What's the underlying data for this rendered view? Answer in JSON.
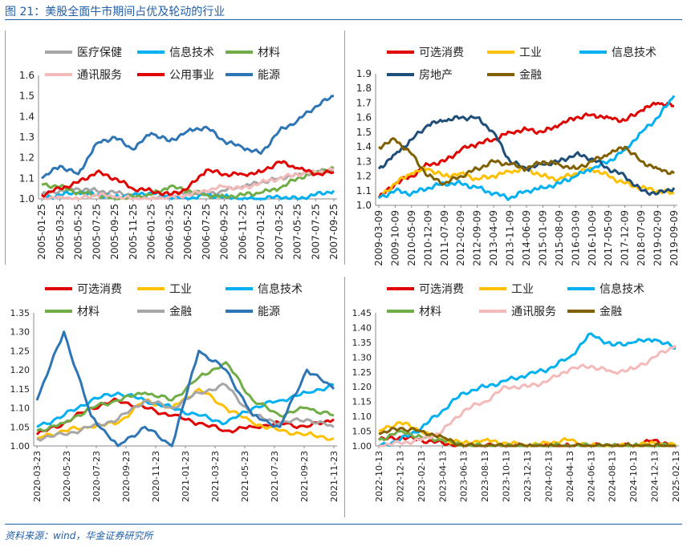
{
  "figure": {
    "title": "图 21：美股全面牛市期间占优及轮动的行业",
    "source": "资料来源：wind，华金证券研究所"
  },
  "chart_data": [
    {
      "type": "line",
      "grid": false,
      "legend_position": "top",
      "ylim": [
        1.0,
        1.6
      ],
      "yticks": [
        "1.0",
        "1.1",
        "1.2",
        "1.3",
        "1.4",
        "1.5",
        "1.6"
      ],
      "xticks": [
        "2005-01-25",
        "2005-03-25",
        "2005-05-25",
        "2005-07-25",
        "2005-09-25",
        "2005-11-25",
        "2006-01-25",
        "2006-03-25",
        "2006-05-25",
        "2006-07-25",
        "2006-09-25",
        "2006-11-25",
        "2007-01-25",
        "2007-03-25",
        "2007-05-25",
        "2007-07-25",
        "2007-09-25"
      ],
      "series": [
        {
          "name": "医疗保健",
          "color": "#a6a6a6",
          "values": [
            1.02,
            1.04,
            1.05,
            1.04,
            1.03,
            1.02,
            1.0,
            1.02,
            1.03,
            1.02,
            1.04,
            1.06,
            1.08,
            1.1,
            1.12,
            1.13,
            1.14
          ]
        },
        {
          "name": "信息技术",
          "color": "#00b0f0",
          "values": [
            1.0,
            1.02,
            1.03,
            1.02,
            1.01,
            1.02,
            1.03,
            1.01,
            1.0,
            1.02,
            1.01,
            1.0,
            1.0,
            1.01,
            1.0,
            1.02,
            1.04
          ]
        },
        {
          "name": "材料",
          "color": "#70ad47",
          "values": [
            1.07,
            1.06,
            1.03,
            1.02,
            1.0,
            1.01,
            1.02,
            1.06,
            1.04,
            1.02,
            1.01,
            1.02,
            1.03,
            1.05,
            1.1,
            1.13,
            1.15
          ]
        },
        {
          "name": "通讯服务",
          "color": "#f4b9b9",
          "values": [
            1.0,
            1.01,
            1.0,
            1.02,
            1.01,
            1.0,
            1.0,
            1.01,
            1.02,
            1.04,
            1.06,
            1.05,
            1.08,
            1.1,
            1.12,
            1.13,
            1.14
          ]
        },
        {
          "name": "公用事业",
          "color": "#e00000",
          "values": [
            1.02,
            1.05,
            1.08,
            1.13,
            1.1,
            1.05,
            1.04,
            1.02,
            1.05,
            1.14,
            1.12,
            1.12,
            1.13,
            1.18,
            1.15,
            1.12,
            1.13
          ]
        },
        {
          "name": "能源",
          "color": "#2e75b6",
          "values": [
            1.1,
            1.16,
            1.12,
            1.27,
            1.3,
            1.24,
            1.32,
            1.28,
            1.33,
            1.35,
            1.28,
            1.25,
            1.22,
            1.33,
            1.38,
            1.45,
            1.5
          ]
        }
      ]
    },
    {
      "type": "line",
      "grid": false,
      "legend_position": "top",
      "ylim": [
        1.0,
        1.9
      ],
      "yticks": [
        "1.0",
        "1.1",
        "1.2",
        "1.3",
        "1.4",
        "1.5",
        "1.6",
        "1.7",
        "1.8",
        "1.9"
      ],
      "xticks": [
        "2009-03-09",
        "2009-10-09",
        "2010-05-09",
        "2010-12-09",
        "2011-07-09",
        "2012-02-09",
        "2012-09-09",
        "2013-04-09",
        "2013-11-09",
        "2014-06-09",
        "2015-01-09",
        "2015-08-09",
        "2016-03-09",
        "2016-10-09",
        "2017-05-09",
        "2017-12-09",
        "2018-07-09",
        "2019-02-09",
        "2019-09-09"
      ],
      "series": [
        {
          "name": "可选消费",
          "color": "#e00000",
          "values": [
            1.05,
            1.15,
            1.2,
            1.28,
            1.3,
            1.38,
            1.42,
            1.45,
            1.5,
            1.52,
            1.5,
            1.55,
            1.6,
            1.62,
            1.6,
            1.58,
            1.65,
            1.7,
            1.68
          ]
        },
        {
          "name": "工业",
          "color": "#ffc000",
          "values": [
            1.05,
            1.15,
            1.22,
            1.25,
            1.2,
            1.22,
            1.18,
            1.2,
            1.23,
            1.25,
            1.2,
            1.18,
            1.22,
            1.25,
            1.2,
            1.15,
            1.12,
            1.1,
            1.08
          ]
        },
        {
          "name": "信息技术",
          "color": "#00b0f0",
          "values": [
            1.05,
            1.1,
            1.08,
            1.12,
            1.15,
            1.15,
            1.12,
            1.08,
            1.05,
            1.1,
            1.12,
            1.15,
            1.2,
            1.25,
            1.3,
            1.38,
            1.5,
            1.6,
            1.75
          ]
        },
        {
          "name": "房地产",
          "color": "#1f4e79",
          "values": [
            1.25,
            1.35,
            1.45,
            1.55,
            1.58,
            1.6,
            1.6,
            1.5,
            1.3,
            1.25,
            1.28,
            1.3,
            1.35,
            1.32,
            1.25,
            1.2,
            1.1,
            1.08,
            1.12
          ]
        },
        {
          "name": "金融",
          "color": "#806000",
          "values": [
            1.4,
            1.45,
            1.35,
            1.2,
            1.15,
            1.2,
            1.25,
            1.3,
            1.28,
            1.25,
            1.3,
            1.28,
            1.25,
            1.3,
            1.35,
            1.4,
            1.3,
            1.25,
            1.22
          ]
        }
      ]
    },
    {
      "type": "line",
      "grid": false,
      "legend_position": "top",
      "ylim": [
        1.0,
        1.35
      ],
      "yticks": [
        "1.00",
        "1.05",
        "1.10",
        "1.15",
        "1.20",
        "1.25",
        "1.30",
        "1.35"
      ],
      "xticks": [
        "2020-03-23",
        "2020-05-23",
        "2020-07-23",
        "2020-09-23",
        "2020-11-23",
        "2021-01-23",
        "2021-03-23",
        "2021-05-23",
        "2021-07-23",
        "2021-09-23",
        "2021-11-23"
      ],
      "series": [
        {
          "name": "可选消费",
          "color": "#e00000",
          "values": [
            1.03,
            1.06,
            1.1,
            1.12,
            1.1,
            1.08,
            1.06,
            1.04,
            1.05,
            1.06,
            1.05,
            1.07
          ]
        },
        {
          "name": "工业",
          "color": "#ffc000",
          "values": [
            1.02,
            1.04,
            1.05,
            1.06,
            1.12,
            1.1,
            1.15,
            1.1,
            1.06,
            1.04,
            1.03,
            1.02
          ]
        },
        {
          "name": "信息技术",
          "color": "#00b0f0",
          "values": [
            1.05,
            1.08,
            1.12,
            1.14,
            1.12,
            1.1,
            1.08,
            1.06,
            1.1,
            1.12,
            1.14,
            1.16
          ]
        },
        {
          "name": "材料",
          "color": "#70ad47",
          "values": [
            1.04,
            1.06,
            1.1,
            1.12,
            1.14,
            1.12,
            1.18,
            1.22,
            1.12,
            1.08,
            1.1,
            1.08
          ]
        },
        {
          "name": "金融",
          "color": "#a6a6a6",
          "values": [
            1.02,
            1.03,
            1.05,
            1.07,
            1.12,
            1.1,
            1.14,
            1.16,
            1.08,
            1.06,
            1.07,
            1.05
          ]
        },
        {
          "name": "能源",
          "color": "#2e75b6",
          "values": [
            1.12,
            1.3,
            1.08,
            1.0,
            1.05,
            1.0,
            1.25,
            1.2,
            1.08,
            1.05,
            1.2,
            1.15
          ]
        }
      ]
    },
    {
      "type": "line",
      "grid": false,
      "legend_position": "top",
      "ylim": [
        1.0,
        1.45
      ],
      "yticks": [
        "1.00",
        "1.05",
        "1.10",
        "1.15",
        "1.20",
        "1.25",
        "1.30",
        "1.35",
        "1.40",
        "1.45"
      ],
      "xticks": [
        "2022-10-13",
        "2022-12-13",
        "2023-02-13",
        "2023-04-13",
        "2023-06-13",
        "2023-08-13",
        "2023-10-13",
        "2023-12-13",
        "2024-02-13",
        "2024-04-13",
        "2024-06-13",
        "2024-08-13",
        "2024-10-13",
        "2024-12-13",
        "2025-02-13"
      ],
      "series": [
        {
          "name": "可选消费",
          "color": "#e00000",
          "values": [
            1.02,
            1.03,
            1.02,
            1.01,
            1.0,
            1.0,
            1.0,
            1.0,
            1.0,
            1.0,
            1.0,
            1.0,
            1.0,
            1.02,
            1.0
          ]
        },
        {
          "name": "工业",
          "color": "#ffc000",
          "values": [
            1.05,
            1.08,
            1.05,
            1.02,
            1.01,
            1.02,
            1.01,
            1.0,
            1.01,
            1.02,
            1.0,
            1.0,
            1.0,
            1.01,
            1.0
          ]
        },
        {
          "name": "信息技术",
          "color": "#00b0f0",
          "values": [
            1.0,
            1.02,
            1.06,
            1.12,
            1.18,
            1.2,
            1.22,
            1.24,
            1.26,
            1.3,
            1.38,
            1.34,
            1.35,
            1.36,
            1.33
          ]
        },
        {
          "name": "材料",
          "color": "#70ad47",
          "values": [
            1.02,
            1.05,
            1.03,
            1.02,
            1.0,
            1.0,
            1.0,
            1.0,
            1.0,
            1.0,
            1.0,
            1.0,
            1.0,
            1.0,
            1.0
          ]
        },
        {
          "name": "通讯服务",
          "color": "#f4b9b9",
          "values": [
            1.0,
            1.01,
            1.02,
            1.05,
            1.12,
            1.15,
            1.2,
            1.2,
            1.22,
            1.26,
            1.27,
            1.25,
            1.26,
            1.3,
            1.34
          ]
        },
        {
          "name": "金融",
          "color": "#806000",
          "values": [
            1.04,
            1.06,
            1.05,
            1.03,
            1.0,
            1.0,
            1.0,
            1.0,
            1.0,
            1.0,
            1.0,
            1.0,
            1.0,
            1.0,
            1.0
          ]
        }
      ]
    }
  ]
}
